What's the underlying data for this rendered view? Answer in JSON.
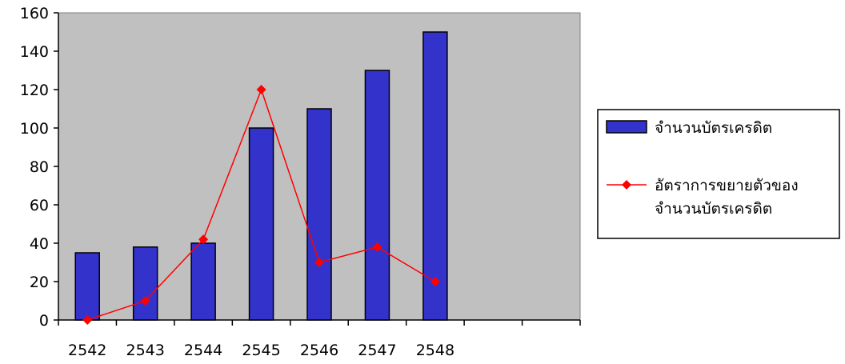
{
  "chart_data": {
    "type": "bar",
    "categories": [
      "2542",
      "2543",
      "2544",
      "2545",
      "2546",
      "2547",
      "2548"
    ],
    "x_slots": 9,
    "ylim": [
      0,
      160
    ],
    "yticks": [
      0,
      20,
      40,
      60,
      80,
      100,
      120,
      140,
      160
    ],
    "grid": false,
    "series": [
      {
        "name": "จำนวนบัตรเครดิต",
        "type": "bar",
        "values": [
          35,
          38,
          40,
          100,
          110,
          130,
          150
        ],
        "color": "#3333CC"
      },
      {
        "name": "อัตราการขยายตัวของจำนวนบัตรเครดิต",
        "name_lines": [
          "อัตราการขยายตัวของ",
          "จำนวนบัตรเครดิต"
        ],
        "type": "line",
        "values": [
          0,
          10,
          42,
          120,
          30,
          38,
          20
        ],
        "color": "#FF0000"
      }
    ],
    "plot_background": "#C0C0C0",
    "legend_position": "right"
  }
}
